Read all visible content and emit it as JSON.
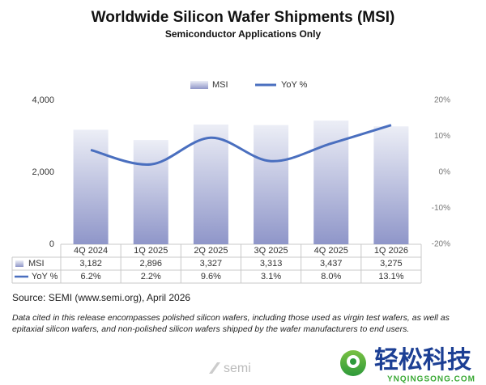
{
  "chart_data": {
    "type": "bar",
    "title": "Worldwide Silicon Wafer Shipments (MSI)",
    "subtitle": "Semiconductor Applications Only",
    "categories": [
      "4Q 2024",
      "1Q 2025",
      "2Q 2025",
      "3Q 2025",
      "4Q 2025",
      "1Q 2026"
    ],
    "series": [
      {
        "name": "MSI",
        "type": "bar",
        "color": "#9aa0cf",
        "values": [
          3182,
          2896,
          3327,
          3313,
          3437,
          3275
        ],
        "value_labels": [
          "3,182",
          "2,896",
          "3,327",
          "3,313",
          "3,437",
          "3,275"
        ]
      },
      {
        "name": "YoY %",
        "type": "line",
        "axis": "y2",
        "color": "#4a6fbf",
        "values": [
          6.2,
          2.2,
          9.6,
          3.1,
          8.0,
          13.1
        ],
        "value_labels": [
          "6.2%",
          "2.2%",
          "9.6%",
          "3.1%",
          "8.0%",
          "13.1%"
        ]
      }
    ],
    "ylim": [
      0,
      4000
    ],
    "yticks": [
      0,
      {
        "value": 2000,
        "label": "2,000"
      },
      {
        "value": 4000,
        "label": "4,000"
      }
    ],
    "y2lim": [
      -20,
      20
    ],
    "y2ticks": [
      {
        "value": -20,
        "label": "-20%"
      },
      {
        "value": -10,
        "label": "-10%"
      },
      {
        "value": 0,
        "label": "0%"
      },
      {
        "value": 10,
        "label": "10%"
      },
      {
        "value": 20,
        "label": "20%"
      }
    ],
    "grid": false,
    "legend": "top",
    "source": "Source: SEMI (www.semi.org), April 2026",
    "note": "Data cited in this release encompasses polished silicon wafers, including those used as virgin test wafers, as well as epitaxial silicon wafers, and non-polished silicon wafers shipped by the wafer manufacturers to end users."
  },
  "logo_text": "semi",
  "watermark": {
    "title": "轻松科技",
    "url": "YNQINGSONG.COM"
  }
}
